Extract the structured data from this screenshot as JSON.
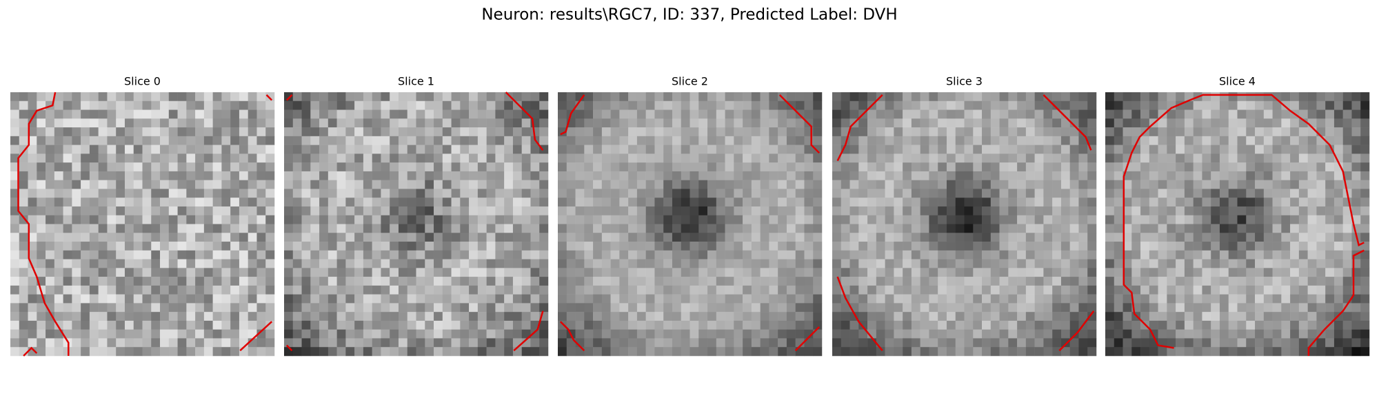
{
  "title": "Neuron: results\\RGC7, ID: 337, Predicted Label: DVH",
  "panels": [
    {
      "title": "Slice 0"
    },
    {
      "title": "Slice 1"
    },
    {
      "title": "Slice 2"
    },
    {
      "title": "Slice 3"
    },
    {
      "title": "Slice 4"
    }
  ]
}
